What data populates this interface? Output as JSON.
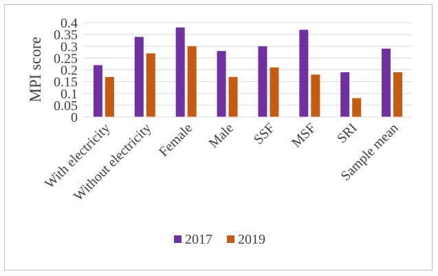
{
  "chart_data": {
    "type": "bar",
    "title": "",
    "xlabel": "",
    "ylabel": "MPI score",
    "ylim": [
      0,
      0.4
    ],
    "yticks": [
      0,
      0.05,
      0.1,
      0.15,
      0.2,
      0.25,
      0.3,
      0.35,
      0.4
    ],
    "ytick_labels": [
      "0",
      "0.05",
      "0.1",
      "0.15",
      "0.2",
      "0.25",
      "0.3",
      "0.35",
      "0.4"
    ],
    "grid": true,
    "legend_position": "bottom",
    "categories": [
      "With electricity",
      "Without electricity",
      "Female",
      "Male",
      "SSF",
      "MSF",
      "SRI",
      "Sample mean"
    ],
    "series": [
      {
        "name": "2017",
        "color": "#7030a0",
        "values": [
          0.22,
          0.34,
          0.38,
          0.28,
          0.3,
          0.37,
          0.19,
          0.29
        ]
      },
      {
        "name": "2019",
        "color": "#c55a11",
        "values": [
          0.17,
          0.27,
          0.3,
          0.17,
          0.21,
          0.18,
          0.08,
          0.19
        ]
      }
    ]
  }
}
